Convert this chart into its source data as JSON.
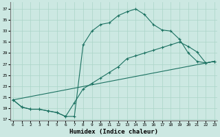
{
  "xlabel": "Humidex (Indice chaleur)",
  "bg_color": "#cce8e2",
  "grid_color": "#aad4c8",
  "line_color": "#1a7060",
  "line1_x": [
    0,
    1,
    2,
    3,
    4,
    5,
    6,
    7,
    8,
    9,
    10,
    11,
    12,
    13,
    14,
    15,
    16,
    17,
    18,
    19,
    20,
    21,
    22,
    23
  ],
  "line1_y": [
    20.5,
    19.2,
    18.8,
    18.8,
    18.5,
    18.2,
    17.5,
    17.5,
    30.5,
    33.0,
    34.2,
    34.5,
    35.8,
    36.5,
    37.0,
    36.0,
    34.2,
    33.2,
    33.0,
    31.5,
    29.0,
    27.5,
    27.2,
    27.5
  ],
  "line2_x": [
    0,
    1,
    2,
    3,
    4,
    5,
    6,
    7,
    8,
    9,
    10,
    11,
    12,
    13,
    14,
    15,
    16,
    17,
    18,
    19,
    20,
    21,
    22,
    23
  ],
  "line2_y": [
    20.5,
    19.2,
    18.8,
    18.8,
    18.5,
    18.2,
    17.5,
    20.0,
    22.5,
    23.5,
    24.5,
    25.5,
    26.5,
    28.0,
    28.5,
    29.0,
    29.5,
    30.0,
    30.5,
    31.0,
    30.2,
    29.2,
    27.2,
    27.5
  ],
  "line3_x": [
    0,
    23
  ],
  "line3_y": [
    20.5,
    27.5
  ],
  "xlim": [
    -0.3,
    23.3
  ],
  "ylim": [
    16.8,
    38.2
  ],
  "xticks": [
    0,
    1,
    2,
    3,
    4,
    5,
    6,
    7,
    8,
    9,
    10,
    11,
    12,
    13,
    14,
    15,
    16,
    17,
    18,
    19,
    20,
    21,
    22,
    23
  ],
  "yticks": [
    17,
    19,
    21,
    23,
    25,
    27,
    29,
    31,
    33,
    35,
    37
  ]
}
